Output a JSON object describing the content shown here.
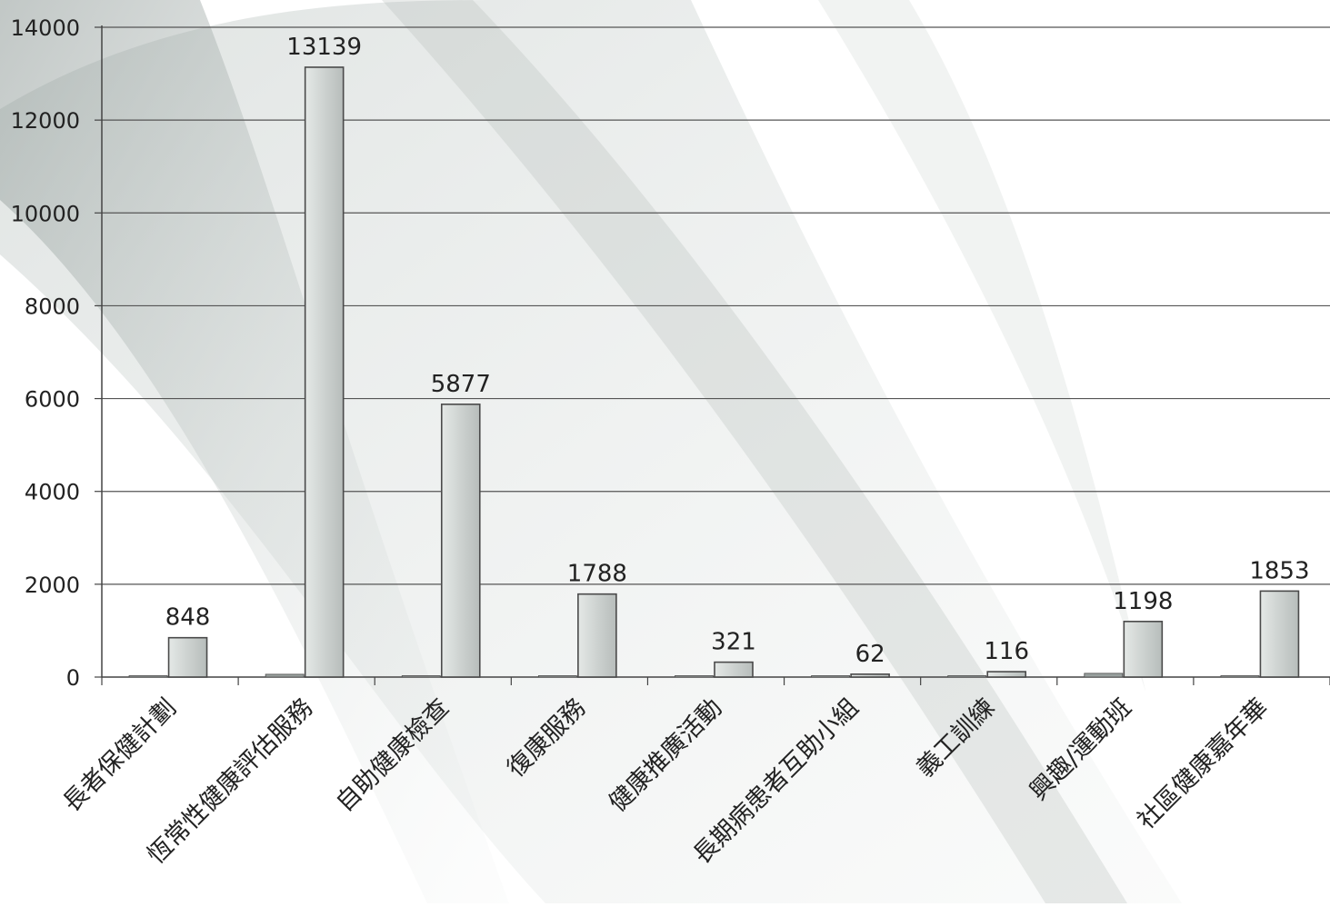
{
  "chart_data": {
    "type": "bar",
    "title": "",
    "xlabel": "",
    "ylabel": "",
    "ylim": [
      0,
      14000
    ],
    "yticks": [
      0,
      2000,
      4000,
      6000,
      8000,
      10000,
      12000,
      14000
    ],
    "grid": true,
    "categories": [
      "長者保健計劃",
      "恆常性健康評估服務",
      "自助健康檢查",
      "復康服務",
      "健康推廣活動",
      "長期病患者互助小組",
      "義工訓練",
      "興趣/運動班",
      "社區健康嘉年華"
    ],
    "series": [
      {
        "values": [
          0,
          60,
          0,
          0,
          0,
          0,
          0,
          80,
          0
        ],
        "labeled": false
      },
      {
        "values": [
          848,
          13139,
          5877,
          1788,
          321,
          62,
          116,
          1198,
          1853
        ],
        "labeled": true
      }
    ]
  },
  "colors": {
    "bar_main": "#cfd4d2",
    "bar_edge": "#4a4a4a",
    "grid": "#555555",
    "background_streak": "#9aa5a2"
  }
}
